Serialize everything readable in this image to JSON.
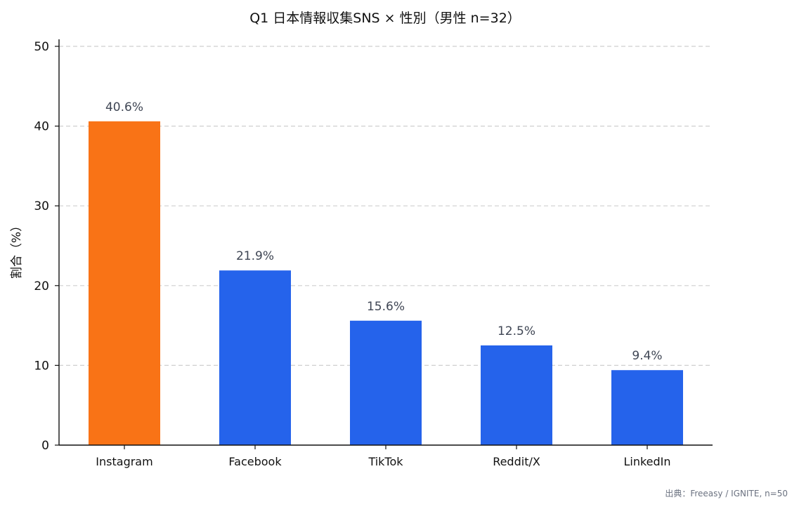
{
  "chart_data": {
    "type": "bar",
    "title": "Q1 日本情報収集SNS × 性別（男性 n=32）",
    "xlabel": "",
    "ylabel": "割合（%）",
    "categories": [
      "Instagram",
      "Facebook",
      "TikTok",
      "Reddit/X",
      "LinkedIn"
    ],
    "values": [
      40.6,
      21.9,
      15.6,
      12.5,
      9.4
    ],
    "data_labels": [
      "40.6%",
      "21.9%",
      "15.6%",
      "12.5%",
      "9.4%"
    ],
    "bar_colors": [
      "#f97316",
      "#2563eb",
      "#2563eb",
      "#2563eb",
      "#2563eb"
    ],
    "ylim": [
      0,
      50
    ],
    "yticks": [
      0,
      10,
      20,
      30,
      40,
      50
    ],
    "ytick_labels": [
      "0",
      "10",
      "20",
      "30",
      "40",
      "50"
    ],
    "grid": "horizontal dashed",
    "legend": "none"
  },
  "footer": {
    "source": "出典：Freeasy / IGNITE, n=50"
  },
  "colors": {
    "highlight": "#f97316",
    "bar": "#2563eb",
    "data_label": "#3f4654",
    "grid": "#cfcfcf",
    "source": "#6b7280"
  }
}
